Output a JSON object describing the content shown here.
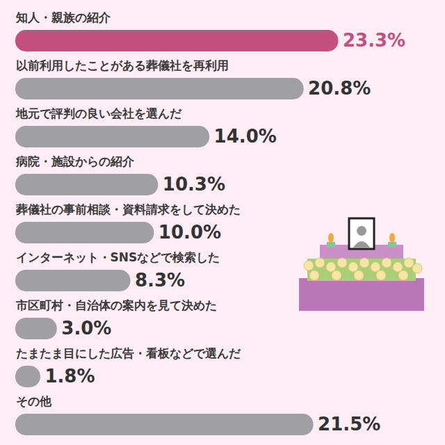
{
  "chart_data": {
    "type": "bar",
    "orientation": "horizontal",
    "categories": [
      "知人・親族の紹介",
      "以前利用したことがある葬儀社を再利用",
      "地元で評判の良い会社を選んだ",
      "病院・施設からの紹介",
      "葬儀社の事前相談・資料請求をして決めた",
      "インターネット・SNSなどで検索した",
      "市区町村・自治体の案内を見て決めた",
      "たまたま目にした広告・看板などで選んだ",
      "その他"
    ],
    "values": [
      23.3,
      20.8,
      14.0,
      10.3,
      10.0,
      8.3,
      3.0,
      1.8,
      21.5
    ],
    "value_labels": [
      "23.3%",
      "20.8%",
      "14.0%",
      "10.3%",
      "10.0%",
      "8.3%",
      "3.0%",
      "1.8%",
      "21.5%"
    ],
    "colors": [
      "#c4507f",
      "#a0a0a4",
      "#a0a0a4",
      "#a0a0a4",
      "#a0a0a4",
      "#a0a0a4",
      "#a0a0a4",
      "#a0a0a4",
      "#a0a0a4"
    ],
    "xlim": [
      0,
      30
    ],
    "tick_labels": false,
    "data_labels": true,
    "grid": false
  }
}
